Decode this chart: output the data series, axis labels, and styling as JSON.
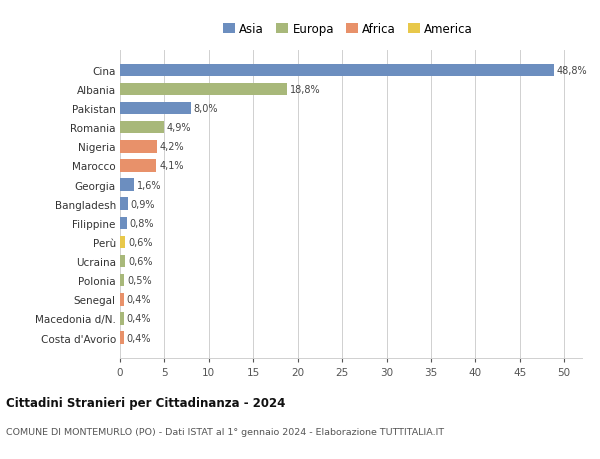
{
  "categories": [
    "Cina",
    "Albania",
    "Pakistan",
    "Romania",
    "Nigeria",
    "Marocco",
    "Georgia",
    "Bangladesh",
    "Filippine",
    "Perù",
    "Ucraina",
    "Polonia",
    "Senegal",
    "Macedonia d/N.",
    "Costa d'Avorio"
  ],
  "values": [
    48.8,
    18.8,
    8.0,
    4.9,
    4.2,
    4.1,
    1.6,
    0.9,
    0.8,
    0.6,
    0.6,
    0.5,
    0.4,
    0.4,
    0.4
  ],
  "labels": [
    "48,8%",
    "18,8%",
    "8,0%",
    "4,9%",
    "4,2%",
    "4,1%",
    "1,6%",
    "0,9%",
    "0,8%",
    "0,6%",
    "0,6%",
    "0,5%",
    "0,4%",
    "0,4%",
    "0,4%"
  ],
  "colors": [
    "#6c8ebf",
    "#a8b87a",
    "#6c8ebf",
    "#a8b87a",
    "#e8916a",
    "#e8916a",
    "#6c8ebf",
    "#6c8ebf",
    "#6c8ebf",
    "#e8c84a",
    "#a8b87a",
    "#a8b87a",
    "#e8916a",
    "#a8b87a",
    "#e8916a"
  ],
  "legend_labels": [
    "Asia",
    "Europa",
    "Africa",
    "America"
  ],
  "legend_colors": [
    "#6c8ebf",
    "#a8b87a",
    "#e8916a",
    "#e8c84a"
  ],
  "title": "Cittadini Stranieri per Cittadinanza - 2024",
  "subtitle": "COMUNE DI MONTEMURLO (PO) - Dati ISTAT al 1° gennaio 2024 - Elaborazione TUTTITALIA.IT",
  "xlim": [
    0,
    52
  ],
  "xticks": [
    0,
    5,
    10,
    15,
    20,
    25,
    30,
    35,
    40,
    45,
    50
  ],
  "background_color": "#ffffff",
  "grid_color": "#d0d0d0"
}
